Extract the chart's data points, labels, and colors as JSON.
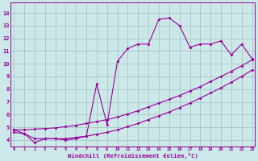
{
  "xlabel": "Windchill (Refroidissement éolien,°C)",
  "bg_color": "#cce8e8",
  "grid_color": "#aacccc",
  "line_color": "#990099",
  "x_ticks": [
    0,
    1,
    2,
    3,
    4,
    5,
    6,
    7,
    8,
    9,
    10,
    11,
    12,
    13,
    14,
    15,
    16,
    17,
    18,
    19,
    20,
    21,
    22,
    23
  ],
  "y_ticks": [
    4,
    5,
    6,
    7,
    8,
    9,
    10,
    11,
    12,
    13,
    14
  ],
  "ylim": [
    3.5,
    14.8
  ],
  "xlim": [
    -0.3,
    23.3
  ],
  "line1_x": [
    0,
    1,
    2,
    3,
    4,
    5,
    6,
    7,
    8,
    9,
    10,
    11,
    12,
    13,
    14,
    15,
    16,
    17,
    18,
    19,
    20,
    21,
    22,
    23
  ],
  "line1_y": [
    4.8,
    4.8,
    4.85,
    4.9,
    4.95,
    5.05,
    5.15,
    5.3,
    5.45,
    5.6,
    5.8,
    6.05,
    6.3,
    6.6,
    6.9,
    7.2,
    7.5,
    7.85,
    8.2,
    8.6,
    9.0,
    9.4,
    9.85,
    10.3
  ],
  "line2_x": [
    0,
    1,
    2,
    3,
    4,
    5,
    6,
    7,
    8,
    9,
    10,
    11,
    12,
    13,
    14,
    15,
    16,
    17,
    18,
    19,
    20,
    21,
    22,
    23
  ],
  "line2_y": [
    4.6,
    4.5,
    4.1,
    4.1,
    4.1,
    4.1,
    4.2,
    4.3,
    4.45,
    4.6,
    4.8,
    5.05,
    5.3,
    5.6,
    5.9,
    6.2,
    6.55,
    6.9,
    7.3,
    7.7,
    8.1,
    8.55,
    9.0,
    9.5
  ],
  "line3_x": [
    0,
    1,
    2,
    3,
    4,
    5,
    6,
    7,
    8,
    9,
    10,
    11,
    12,
    13,
    14,
    15,
    16,
    17,
    18,
    19,
    20,
    21,
    22,
    23
  ],
  "line3_y": [
    4.8,
    4.5,
    3.8,
    4.1,
    4.1,
    4.0,
    4.1,
    4.3,
    8.4,
    5.2,
    10.2,
    11.2,
    11.55,
    11.55,
    13.5,
    13.6,
    13.0,
    11.3,
    11.55,
    11.55,
    11.8,
    10.7,
    11.55,
    10.4
  ]
}
